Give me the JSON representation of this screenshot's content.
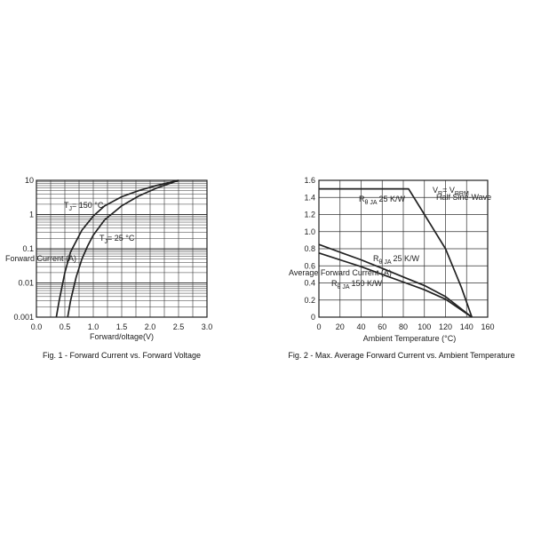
{
  "chart_data": [
    {
      "type": "line",
      "title": "",
      "caption": "Fig. 1 - Forward Current vs. Forward Voltage",
      "xlabel": "Forward/oltage(V)",
      "ylabel": "Forward Current (A)",
      "xlim": [
        0,
        3.0
      ],
      "ylim": [
        0.001,
        10
      ],
      "yscale": "log",
      "grid": true,
      "x_ticks": [
        "0.0",
        "0.5",
        "1.0",
        "1.5",
        "2.0",
        "2.5",
        "3.0"
      ],
      "y_ticks": [
        "0.001",
        "0.01",
        "0.1",
        "1",
        "10"
      ],
      "series": [
        {
          "name": "T_J = 150 °C",
          "x": [
            0.35,
            0.4,
            0.5,
            0.6,
            0.8,
            1.0,
            1.2,
            1.5,
            1.8,
            2.1,
            2.5
          ],
          "y": [
            0.001,
            0.003,
            0.02,
            0.08,
            0.35,
            0.9,
            1.8,
            3.3,
            5.0,
            7.0,
            10
          ]
        },
        {
          "name": "T_J = 25 °C",
          "x": [
            0.55,
            0.6,
            0.7,
            0.8,
            0.9,
            1.0,
            1.2,
            1.5,
            1.8,
            2.1,
            2.5
          ],
          "y": [
            0.001,
            0.003,
            0.015,
            0.05,
            0.12,
            0.25,
            0.7,
            1.8,
            3.5,
            5.8,
            10
          ]
        }
      ],
      "annotations": [
        {
          "text": "T",
          "sub": "J",
          "rest": "= 150 °C"
        },
        {
          "text": "T",
          "sub": "J",
          "rest": "= 25 °C"
        }
      ]
    },
    {
      "type": "line",
      "title": "",
      "caption": "Fig. 2 - Max. Average Forward Current vs. Ambient Temperature",
      "xlabel": "Ambient Temperature (°C)",
      "ylabel": "Average Forward Current (A)",
      "xlim": [
        0,
        160
      ],
      "ylim": [
        0,
        1.6
      ],
      "grid": true,
      "x_ticks": [
        "0",
        "20",
        "40",
        "60",
        "80",
        "100",
        "120",
        "140",
        "160"
      ],
      "y_ticks": [
        "0",
        "0.2",
        "0.4",
        "0.6",
        "0.8",
        "1.0",
        "1.2",
        "1.4",
        "1.6"
      ],
      "series": [
        {
          "name": "R θ JA 25 K/W (upper)",
          "x": [
            0,
            85,
            100,
            120,
            135,
            145
          ],
          "y": [
            1.5,
            1.5,
            1.2,
            0.8,
            0.35,
            0
          ]
        },
        {
          "name": "R θ JA 25 K/W",
          "x": [
            0,
            20,
            40,
            60,
            80,
            100,
            120,
            145
          ],
          "y": [
            0.85,
            0.76,
            0.67,
            0.57,
            0.47,
            0.37,
            0.24,
            0
          ]
        },
        {
          "name": "R θ JA 150 K/W",
          "x": [
            0,
            20,
            40,
            60,
            80,
            100,
            120,
            145
          ],
          "y": [
            0.75,
            0.67,
            0.59,
            0.5,
            0.41,
            0.32,
            0.21,
            0
          ]
        }
      ],
      "annotations": [
        {
          "text": "V",
          "sub": "R",
          "rest": "= V",
          "sub2": "RRM"
        },
        {
          "text": "Half Sine-Wave"
        },
        {
          "text": "R",
          "sub": "θ JA",
          "rest": "25 K/W"
        },
        {
          "text": "R",
          "sub": "θ JA",
          "rest": "25 K/W"
        },
        {
          "text": "R",
          "sub": "θ JA",
          "rest": "150 K/W"
        }
      ]
    }
  ]
}
